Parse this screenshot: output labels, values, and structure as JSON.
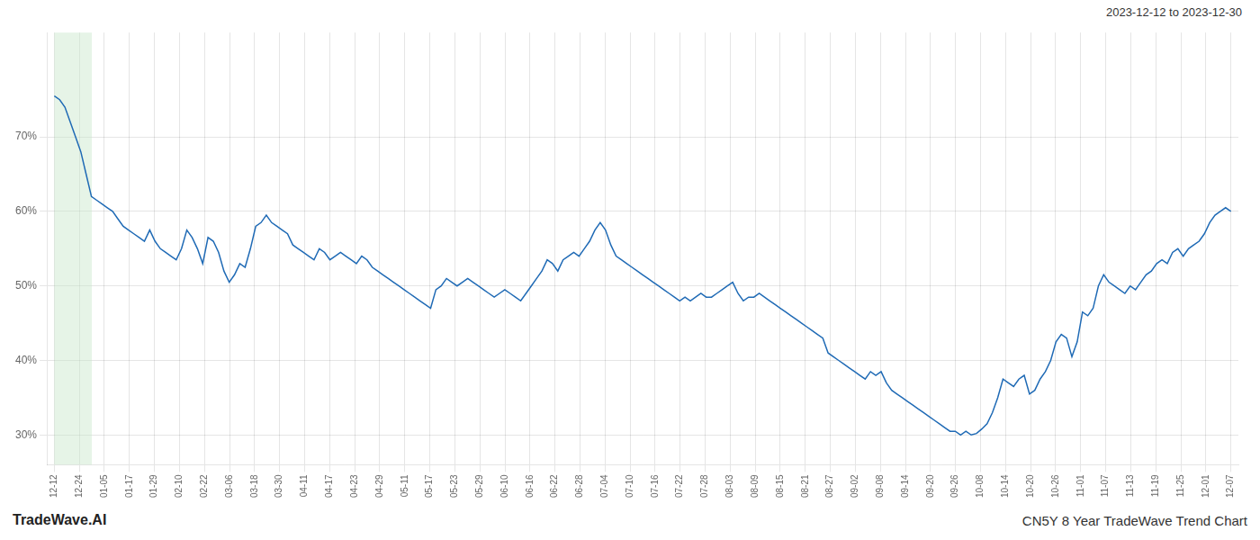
{
  "chart_data": {
    "type": "line",
    "title": "CN5Y 8 Year TradeWave Trend Chart",
    "subtitle": "2023-12-12 to 2023-12-30",
    "annotations": [
      "TradeWave.AI"
    ],
    "color": "#1f6ab5",
    "grid": true,
    "highlight": {
      "start": 0,
      "end": 1.5,
      "color": "#c8e6c9"
    },
    "ylim": [
      26,
      84
    ],
    "yticks": [
      {
        "value": 30,
        "label": "30%"
      },
      {
        "value": 40,
        "label": "40%"
      },
      {
        "value": 50,
        "label": "50%"
      },
      {
        "value": 60,
        "label": "60%"
      },
      {
        "value": 70,
        "label": "70%"
      }
    ],
    "xlim": [
      -0.3,
      47.3
    ],
    "xticks": [
      {
        "value": 0,
        "label": "12-12"
      },
      {
        "value": 1,
        "label": "12-24"
      },
      {
        "value": 2,
        "label": "01-05"
      },
      {
        "value": 3,
        "label": "01-17"
      },
      {
        "value": 4,
        "label": "01-29"
      },
      {
        "value": 5,
        "label": "02-10"
      },
      {
        "value": 6,
        "label": "02-22"
      },
      {
        "value": 7,
        "label": "03-06"
      },
      {
        "value": 8,
        "label": "03-18"
      },
      {
        "value": 9,
        "label": "03-30"
      },
      {
        "value": 10,
        "label": "04-11"
      },
      {
        "value": 11,
        "label": "04-17"
      },
      {
        "value": 12,
        "label": "04-23"
      },
      {
        "value": 13,
        "label": "04-29"
      },
      {
        "value": 14,
        "label": "05-11"
      },
      {
        "value": 15,
        "label": "05-17"
      },
      {
        "value": 16,
        "label": "05-23"
      },
      {
        "value": 17,
        "label": "05-29"
      },
      {
        "value": 18,
        "label": "06-10"
      },
      {
        "value": 19,
        "label": "06-16"
      },
      {
        "value": 20,
        "label": "06-22"
      },
      {
        "value": 21,
        "label": "06-28"
      },
      {
        "value": 22,
        "label": "07-04"
      },
      {
        "value": 23,
        "label": "07-10"
      },
      {
        "value": 24,
        "label": "07-16"
      },
      {
        "value": 25,
        "label": "07-22"
      },
      {
        "value": 26,
        "label": "07-28"
      },
      {
        "value": 27,
        "label": "08-03"
      },
      {
        "value": 28,
        "label": "08-09"
      },
      {
        "value": 29,
        "label": "08-15"
      },
      {
        "value": 30,
        "label": "08-21"
      },
      {
        "value": 31,
        "label": "08-27"
      },
      {
        "value": 32,
        "label": "09-02"
      },
      {
        "value": 33,
        "label": "09-08"
      },
      {
        "value": 34,
        "label": "09-14"
      },
      {
        "value": 35,
        "label": "09-20"
      },
      {
        "value": 36,
        "label": "09-26"
      },
      {
        "value": 37,
        "label": "10-08"
      },
      {
        "value": 38,
        "label": "10-14"
      },
      {
        "value": 39,
        "label": "10-20"
      },
      {
        "value": 40,
        "label": "10-26"
      },
      {
        "value": 41,
        "label": "11-01"
      },
      {
        "value": 42,
        "label": "11-07"
      },
      {
        "value": 43,
        "label": "11-13"
      },
      {
        "value": 44,
        "label": "11-19"
      },
      {
        "value": 45,
        "label": "11-25"
      },
      {
        "value": 46,
        "label": "12-01"
      },
      {
        "value": 47,
        "label": "12-07"
      }
    ],
    "values": [
      75.5,
      75.0,
      74.0,
      72.0,
      70.0,
      68.0,
      65.0,
      62.0,
      61.5,
      61.0,
      60.5,
      60.0,
      59.0,
      58.0,
      57.5,
      57.0,
      56.5,
      56.0,
      57.5,
      56.0,
      55.0,
      54.5,
      54.0,
      53.5,
      55.0,
      57.5,
      56.5,
      55.0,
      53.0,
      56.5,
      56.0,
      54.5,
      52.0,
      50.5,
      51.5,
      53.0,
      52.5,
      55.0,
      58.0,
      58.5,
      59.5,
      58.5,
      58.0,
      57.5,
      57.0,
      55.5,
      55.0,
      54.5,
      54.0,
      53.5,
      55.0,
      54.5,
      53.5,
      54.0,
      54.5,
      54.0,
      53.5,
      53.0,
      54.0,
      53.5,
      52.5,
      52.0,
      51.5,
      51.0,
      50.5,
      50.0,
      49.5,
      49.0,
      48.5,
      48.0,
      47.5,
      47.0,
      49.5,
      50.0,
      51.0,
      50.5,
      50.0,
      50.5,
      51.0,
      50.5,
      50.0,
      49.5,
      49.0,
      48.5,
      49.0,
      49.5,
      49.0,
      48.5,
      48.0,
      49.0,
      50.0,
      51.0,
      52.0,
      53.5,
      53.0,
      52.0,
      53.5,
      54.0,
      54.5,
      54.0,
      55.0,
      56.0,
      57.5,
      58.5,
      57.5,
      55.5,
      54.0,
      53.5,
      53.0,
      52.5,
      52.0,
      51.5,
      51.0,
      50.5,
      50.0,
      49.5,
      49.0,
      48.5,
      48.0,
      48.5,
      48.0,
      48.5,
      49.0,
      48.5,
      48.5,
      49.0,
      49.5,
      50.0,
      50.5,
      49.0,
      48.0,
      48.5,
      48.5,
      49.0,
      48.5,
      48.0,
      47.5,
      47.0,
      46.5,
      46.0,
      45.5,
      45.0,
      44.5,
      44.0,
      43.5,
      43.0,
      41.0,
      40.5,
      40.0,
      39.5,
      39.0,
      38.5,
      38.0,
      37.5,
      38.5,
      38.0,
      38.5,
      37.0,
      36.0,
      35.5,
      35.0,
      34.5,
      34.0,
      33.5,
      33.0,
      32.5,
      32.0,
      31.5,
      31.0,
      30.5,
      30.5,
      30.0,
      30.5,
      30.0,
      30.2,
      30.8,
      31.5,
      33.0,
      35.0,
      37.5,
      37.0,
      36.5,
      37.5,
      38.0,
      35.5,
      36.0,
      37.5,
      38.5,
      40.0,
      42.5,
      43.5,
      43.0,
      40.5,
      42.5,
      46.5,
      46.0,
      47.0,
      50.0,
      51.5,
      50.5,
      50.0,
      49.5,
      49.0,
      50.0,
      49.5,
      50.5,
      51.5,
      52.0,
      53.0,
      53.5,
      53.0,
      54.5,
      55.0,
      54.0,
      55.0,
      55.5,
      56.0,
      57.0,
      58.5,
      59.5,
      60.0,
      60.5,
      60.0
    ]
  }
}
